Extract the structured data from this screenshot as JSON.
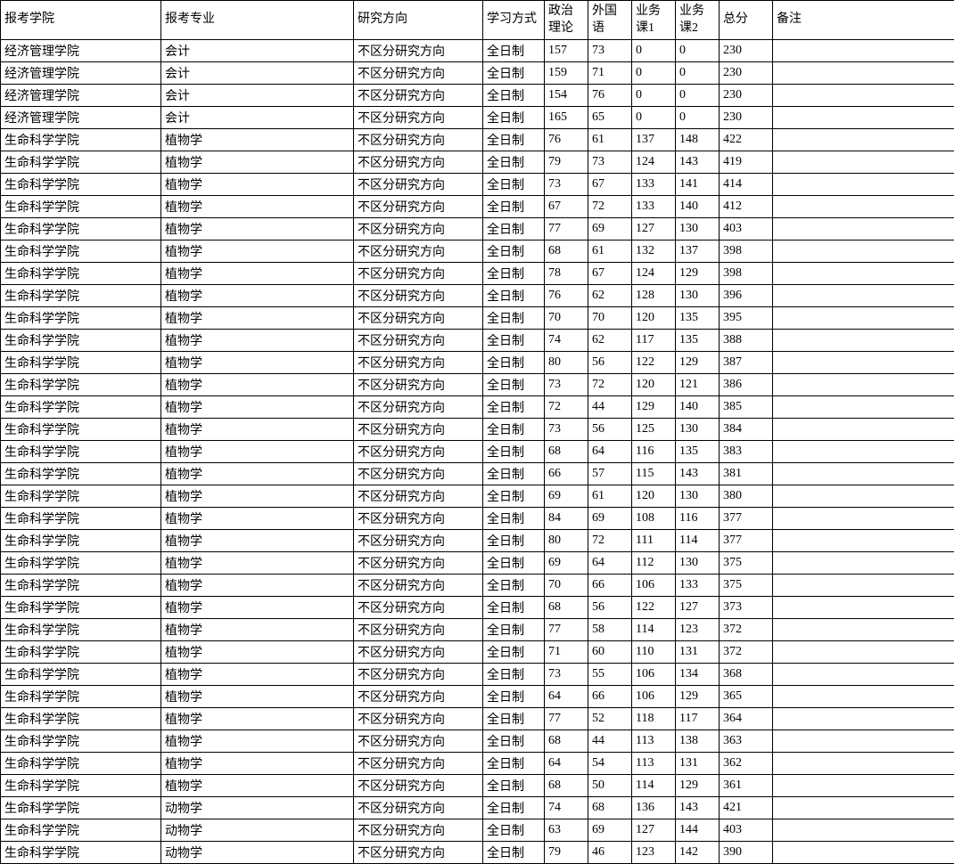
{
  "table": {
    "columns": [
      {
        "key": "college",
        "label": "报考学院",
        "class": "col-college"
      },
      {
        "key": "major",
        "label": "报考专业",
        "class": "col-major"
      },
      {
        "key": "direction",
        "label": "研究方向",
        "class": "col-direction"
      },
      {
        "key": "mode",
        "label": "学习方式",
        "class": "col-mode"
      },
      {
        "key": "s1",
        "label": "政治理论",
        "class": "col-score1"
      },
      {
        "key": "s2",
        "label": "外国语",
        "class": "col-score2"
      },
      {
        "key": "s3",
        "label": "业务课1",
        "class": "col-score3"
      },
      {
        "key": "s4",
        "label": "业务课2",
        "class": "col-score4"
      },
      {
        "key": "total",
        "label": "总分",
        "class": "col-total"
      },
      {
        "key": "remark",
        "label": "备注",
        "class": "col-remark"
      }
    ],
    "rows": [
      {
        "college": "经济管理学院",
        "major": "会计",
        "direction": "不区分研究方向",
        "mode": "全日制",
        "s1": "157",
        "s2": "73",
        "s3": "0",
        "s4": "0",
        "total": "230",
        "remark": ""
      },
      {
        "college": "经济管理学院",
        "major": "会计",
        "direction": "不区分研究方向",
        "mode": "全日制",
        "s1": "159",
        "s2": "71",
        "s3": "0",
        "s4": "0",
        "total": "230",
        "remark": ""
      },
      {
        "college": "经济管理学院",
        "major": "会计",
        "direction": "不区分研究方向",
        "mode": "全日制",
        "s1": "154",
        "s2": "76",
        "s3": "0",
        "s4": "0",
        "total": "230",
        "remark": ""
      },
      {
        "college": "经济管理学院",
        "major": "会计",
        "direction": "不区分研究方向",
        "mode": "全日制",
        "s1": "165",
        "s2": "65",
        "s3": "0",
        "s4": "0",
        "total": "230",
        "remark": ""
      },
      {
        "college": "生命科学学院",
        "major": "植物学",
        "direction": "不区分研究方向",
        "mode": "全日制",
        "s1": "76",
        "s2": "61",
        "s3": "137",
        "s4": "148",
        "total": "422",
        "remark": ""
      },
      {
        "college": "生命科学学院",
        "major": "植物学",
        "direction": "不区分研究方向",
        "mode": "全日制",
        "s1": "79",
        "s2": "73",
        "s3": "124",
        "s4": "143",
        "total": "419",
        "remark": ""
      },
      {
        "college": "生命科学学院",
        "major": "植物学",
        "direction": "不区分研究方向",
        "mode": "全日制",
        "s1": "73",
        "s2": "67",
        "s3": "133",
        "s4": "141",
        "total": "414",
        "remark": ""
      },
      {
        "college": "生命科学学院",
        "major": "植物学",
        "direction": "不区分研究方向",
        "mode": "全日制",
        "s1": "67",
        "s2": "72",
        "s3": "133",
        "s4": "140",
        "total": "412",
        "remark": ""
      },
      {
        "college": "生命科学学院",
        "major": "植物学",
        "direction": "不区分研究方向",
        "mode": "全日制",
        "s1": "77",
        "s2": "69",
        "s3": "127",
        "s4": "130",
        "total": "403",
        "remark": ""
      },
      {
        "college": "生命科学学院",
        "major": "植物学",
        "direction": "不区分研究方向",
        "mode": "全日制",
        "s1": "68",
        "s2": "61",
        "s3": "132",
        "s4": "137",
        "total": "398",
        "remark": ""
      },
      {
        "college": "生命科学学院",
        "major": "植物学",
        "direction": "不区分研究方向",
        "mode": "全日制",
        "s1": "78",
        "s2": "67",
        "s3": "124",
        "s4": "129",
        "total": "398",
        "remark": ""
      },
      {
        "college": "生命科学学院",
        "major": "植物学",
        "direction": "不区分研究方向",
        "mode": "全日制",
        "s1": "76",
        "s2": "62",
        "s3": "128",
        "s4": "130",
        "total": "396",
        "remark": ""
      },
      {
        "college": "生命科学学院",
        "major": "植物学",
        "direction": "不区分研究方向",
        "mode": "全日制",
        "s1": "70",
        "s2": "70",
        "s3": "120",
        "s4": "135",
        "total": "395",
        "remark": ""
      },
      {
        "college": "生命科学学院",
        "major": "植物学",
        "direction": "不区分研究方向",
        "mode": "全日制",
        "s1": "74",
        "s2": "62",
        "s3": "117",
        "s4": "135",
        "total": "388",
        "remark": ""
      },
      {
        "college": "生命科学学院",
        "major": "植物学",
        "direction": "不区分研究方向",
        "mode": "全日制",
        "s1": "80",
        "s2": "56",
        "s3": "122",
        "s4": "129",
        "total": "387",
        "remark": ""
      },
      {
        "college": "生命科学学院",
        "major": "植物学",
        "direction": "不区分研究方向",
        "mode": "全日制",
        "s1": "73",
        "s2": "72",
        "s3": "120",
        "s4": "121",
        "total": "386",
        "remark": ""
      },
      {
        "college": "生命科学学院",
        "major": "植物学",
        "direction": "不区分研究方向",
        "mode": "全日制",
        "s1": "72",
        "s2": "44",
        "s3": "129",
        "s4": "140",
        "total": "385",
        "remark": ""
      },
      {
        "college": "生命科学学院",
        "major": "植物学",
        "direction": "不区分研究方向",
        "mode": "全日制",
        "s1": "73",
        "s2": "56",
        "s3": "125",
        "s4": "130",
        "total": "384",
        "remark": ""
      },
      {
        "college": "生命科学学院",
        "major": "植物学",
        "direction": "不区分研究方向",
        "mode": "全日制",
        "s1": "68",
        "s2": "64",
        "s3": "116",
        "s4": "135",
        "total": "383",
        "remark": ""
      },
      {
        "college": "生命科学学院",
        "major": "植物学",
        "direction": "不区分研究方向",
        "mode": "全日制",
        "s1": "66",
        "s2": "57",
        "s3": "115",
        "s4": "143",
        "total": "381",
        "remark": ""
      },
      {
        "college": "生命科学学院",
        "major": "植物学",
        "direction": "不区分研究方向",
        "mode": "全日制",
        "s1": "69",
        "s2": "61",
        "s3": "120",
        "s4": "130",
        "total": "380",
        "remark": ""
      },
      {
        "college": "生命科学学院",
        "major": "植物学",
        "direction": "不区分研究方向",
        "mode": "全日制",
        "s1": "84",
        "s2": "69",
        "s3": "108",
        "s4": "116",
        "total": "377",
        "remark": ""
      },
      {
        "college": "生命科学学院",
        "major": "植物学",
        "direction": "不区分研究方向",
        "mode": "全日制",
        "s1": "80",
        "s2": "72",
        "s3": "111",
        "s4": "114",
        "total": "377",
        "remark": ""
      },
      {
        "college": "生命科学学院",
        "major": "植物学",
        "direction": "不区分研究方向",
        "mode": "全日制",
        "s1": "69",
        "s2": "64",
        "s3": "112",
        "s4": "130",
        "total": "375",
        "remark": ""
      },
      {
        "college": "生命科学学院",
        "major": "植物学",
        "direction": "不区分研究方向",
        "mode": "全日制",
        "s1": "70",
        "s2": "66",
        "s3": "106",
        "s4": "133",
        "total": "375",
        "remark": ""
      },
      {
        "college": "生命科学学院",
        "major": "植物学",
        "direction": "不区分研究方向",
        "mode": "全日制",
        "s1": "68",
        "s2": "56",
        "s3": "122",
        "s4": "127",
        "total": "373",
        "remark": ""
      },
      {
        "college": "生命科学学院",
        "major": "植物学",
        "direction": "不区分研究方向",
        "mode": "全日制",
        "s1": "77",
        "s2": "58",
        "s3": "114",
        "s4": "123",
        "total": "372",
        "remark": ""
      },
      {
        "college": "生命科学学院",
        "major": "植物学",
        "direction": "不区分研究方向",
        "mode": "全日制",
        "s1": "71",
        "s2": "60",
        "s3": "110",
        "s4": "131",
        "total": "372",
        "remark": ""
      },
      {
        "college": "生命科学学院",
        "major": "植物学",
        "direction": "不区分研究方向",
        "mode": "全日制",
        "s1": "73",
        "s2": "55",
        "s3": "106",
        "s4": "134",
        "total": "368",
        "remark": ""
      },
      {
        "college": "生命科学学院",
        "major": "植物学",
        "direction": "不区分研究方向",
        "mode": "全日制",
        "s1": "64",
        "s2": "66",
        "s3": "106",
        "s4": "129",
        "total": "365",
        "remark": ""
      },
      {
        "college": "生命科学学院",
        "major": "植物学",
        "direction": "不区分研究方向",
        "mode": "全日制",
        "s1": "77",
        "s2": "52",
        "s3": "118",
        "s4": "117",
        "total": "364",
        "remark": ""
      },
      {
        "college": "生命科学学院",
        "major": "植物学",
        "direction": "不区分研究方向",
        "mode": "全日制",
        "s1": "68",
        "s2": "44",
        "s3": "113",
        "s4": "138",
        "total": "363",
        "remark": ""
      },
      {
        "college": "生命科学学院",
        "major": "植物学",
        "direction": "不区分研究方向",
        "mode": "全日制",
        "s1": "64",
        "s2": "54",
        "s3": "113",
        "s4": "131",
        "total": "362",
        "remark": ""
      },
      {
        "college": "生命科学学院",
        "major": "植物学",
        "direction": "不区分研究方向",
        "mode": "全日制",
        "s1": "68",
        "s2": "50",
        "s3": "114",
        "s4": "129",
        "total": "361",
        "remark": ""
      },
      {
        "college": "生命科学学院",
        "major": "动物学",
        "direction": "不区分研究方向",
        "mode": "全日制",
        "s1": "74",
        "s2": "68",
        "s3": "136",
        "s4": "143",
        "total": "421",
        "remark": ""
      },
      {
        "college": "生命科学学院",
        "major": "动物学",
        "direction": "不区分研究方向",
        "mode": "全日制",
        "s1": "63",
        "s2": "69",
        "s3": "127",
        "s4": "144",
        "total": "403",
        "remark": ""
      },
      {
        "college": "生命科学学院",
        "major": "动物学",
        "direction": "不区分研究方向",
        "mode": "全日制",
        "s1": "79",
        "s2": "46",
        "s3": "123",
        "s4": "142",
        "total": "390",
        "remark": ""
      }
    ]
  }
}
